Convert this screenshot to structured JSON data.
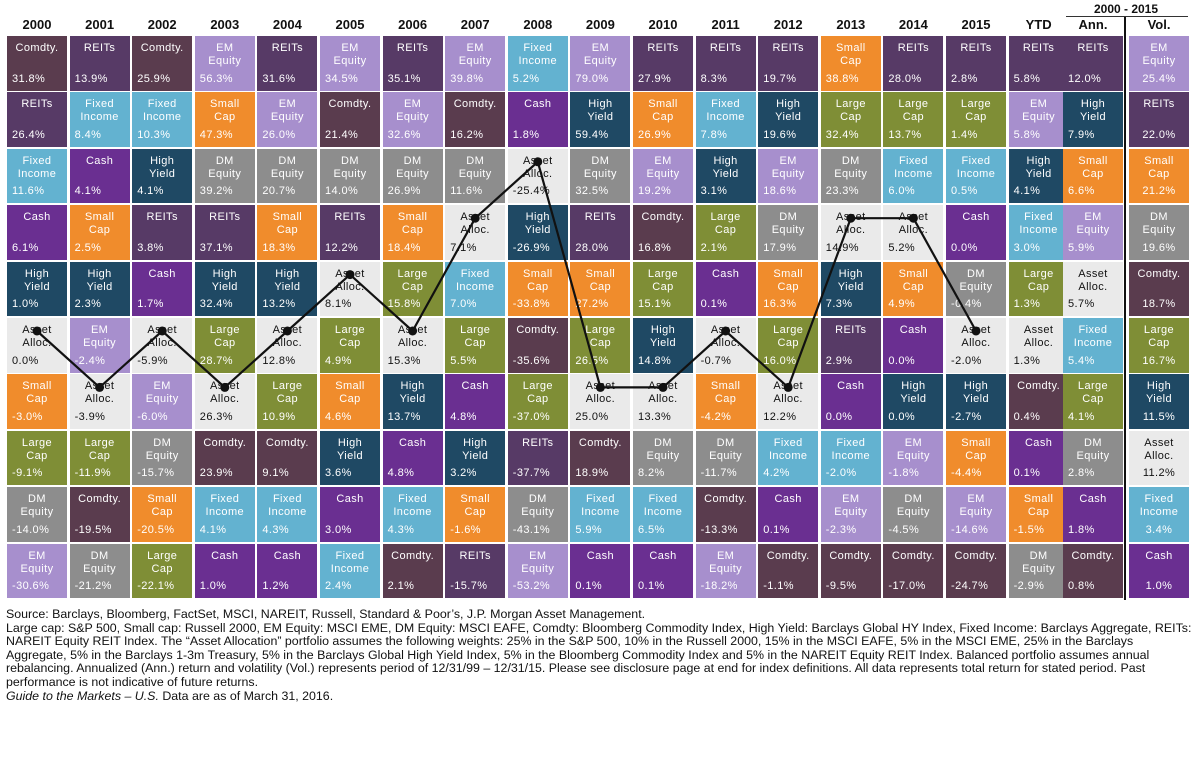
{
  "header": {
    "years": [
      "2000",
      "2001",
      "2002",
      "2003",
      "2004",
      "2005",
      "2006",
      "2007",
      "2008",
      "2009",
      "2010",
      "2011",
      "2012",
      "2013",
      "2014",
      "2015",
      "YTD"
    ],
    "period_label": "2000 - 2015",
    "ann_label": "Ann.",
    "vol_label": "Vol."
  },
  "colors": {
    "Comdty.": "#5a3c4e",
    "REITs": "#573a66",
    "EM Equity": "#a78fcd",
    "Fixed Income": "#63b2d0",
    "Small Cap": "#f08c2c",
    "Cash": "#6a2f91",
    "High Yield": "#1f4964",
    "DM Equity": "#8d8d8d",
    "Large Cap": "#7f8e36",
    "Asset Alloc.": "#eaeaea"
  },
  "display_names": {
    "Comdty.": "Comdty.",
    "REITs": "REITs",
    "EM Equity": "EM\nEquity",
    "Fixed Income": "Fixed\nIncome",
    "Small Cap": "Small\nCap",
    "Cash": "Cash",
    "High Yield": "High\nYield",
    "DM Equity": "DM\nEquity",
    "Large Cap": "Large\nCap",
    "Asset Alloc.": "Asset\nAlloc."
  },
  "chart_data": {
    "type": "table",
    "title": "",
    "columns": [
      "2000",
      "2001",
      "2002",
      "2003",
      "2004",
      "2005",
      "2006",
      "2007",
      "2008",
      "2009",
      "2010",
      "2011",
      "2012",
      "2013",
      "2014",
      "2015",
      "YTD"
    ],
    "ranked_returns": [
      [
        [
          "Comdty.",
          "31.8%"
        ],
        [
          "REITs",
          "26.4%"
        ],
        [
          "Fixed Income",
          "11.6%"
        ],
        [
          "Cash",
          "6.1%"
        ],
        [
          "High Yield",
          "1.0%"
        ],
        [
          "Asset Alloc.",
          "0.0%"
        ],
        [
          "Small Cap",
          "-3.0%"
        ],
        [
          "Large Cap",
          "-9.1%"
        ],
        [
          "DM Equity",
          "-14.0%"
        ],
        [
          "EM Equity",
          "-30.6%"
        ]
      ],
      [
        [
          "REITs",
          "13.9%"
        ],
        [
          "Fixed Income",
          "8.4%"
        ],
        [
          "Cash",
          "4.1%"
        ],
        [
          "Small Cap",
          "2.5%"
        ],
        [
          "High Yield",
          "2.3%"
        ],
        [
          "EM Equity",
          "-2.4%"
        ],
        [
          "Asset Alloc.",
          "-3.9%"
        ],
        [
          "Large Cap",
          "-11.9%"
        ],
        [
          "Comdty.",
          "-19.5%"
        ],
        [
          "DM Equity",
          "-21.2%"
        ]
      ],
      [
        [
          "Comdty.",
          "25.9%"
        ],
        [
          "Fixed Income",
          "10.3%"
        ],
        [
          "High Yield",
          "4.1%"
        ],
        [
          "REITs",
          "3.8%"
        ],
        [
          "Cash",
          "1.7%"
        ],
        [
          "Asset Alloc.",
          "-5.9%"
        ],
        [
          "EM Equity",
          "-6.0%"
        ],
        [
          "DM Equity",
          "-15.7%"
        ],
        [
          "Small Cap",
          "-20.5%"
        ],
        [
          "Large Cap",
          "-22.1%"
        ]
      ],
      [
        [
          "EM Equity",
          "56.3%"
        ],
        [
          "Small Cap",
          "47.3%"
        ],
        [
          "DM Equity",
          "39.2%"
        ],
        [
          "REITs",
          "37.1%"
        ],
        [
          "High Yield",
          "32.4%"
        ],
        [
          "Large Cap",
          "28.7%"
        ],
        [
          "Asset Alloc.",
          "26.3%"
        ],
        [
          "Comdty.",
          "23.9%"
        ],
        [
          "Fixed Income",
          "4.1%"
        ],
        [
          "Cash",
          "1.0%"
        ]
      ],
      [
        [
          "REITs",
          "31.6%"
        ],
        [
          "EM Equity",
          "26.0%"
        ],
        [
          "DM Equity",
          "20.7%"
        ],
        [
          "Small Cap",
          "18.3%"
        ],
        [
          "High Yield",
          "13.2%"
        ],
        [
          "Asset Alloc.",
          "12.8%"
        ],
        [
          "Large Cap",
          "10.9%"
        ],
        [
          "Comdty.",
          "9.1%"
        ],
        [
          "Fixed Income",
          "4.3%"
        ],
        [
          "Cash",
          "1.2%"
        ]
      ],
      [
        [
          "EM Equity",
          "34.5%"
        ],
        [
          "Comdty.",
          "21.4%"
        ],
        [
          "DM Equity",
          "14.0%"
        ],
        [
          "REITs",
          "12.2%"
        ],
        [
          "Asset Alloc.",
          "8.1%"
        ],
        [
          "Large Cap",
          "4.9%"
        ],
        [
          "Small Cap",
          "4.6%"
        ],
        [
          "High Yield",
          "3.6%"
        ],
        [
          "Cash",
          "3.0%"
        ],
        [
          "Fixed Income",
          "2.4%"
        ]
      ],
      [
        [
          "REITs",
          "35.1%"
        ],
        [
          "EM Equity",
          "32.6%"
        ],
        [
          "DM Equity",
          "26.9%"
        ],
        [
          "Small Cap",
          "18.4%"
        ],
        [
          "Large Cap",
          "15.8%"
        ],
        [
          "Asset Alloc.",
          "15.3%"
        ],
        [
          "High Yield",
          "13.7%"
        ],
        [
          "Cash",
          "4.8%"
        ],
        [
          "Fixed Income",
          "4.3%"
        ],
        [
          "Comdty.",
          "2.1%"
        ]
      ],
      [
        [
          "EM Equity",
          "39.8%"
        ],
        [
          "Comdty.",
          "16.2%"
        ],
        [
          "DM Equity",
          "11.6%"
        ],
        [
          "Asset Alloc.",
          "7.1%"
        ],
        [
          "Fixed Income",
          "7.0%"
        ],
        [
          "Large Cap",
          "5.5%"
        ],
        [
          "Cash",
          "4.8%"
        ],
        [
          "High Yield",
          "3.2%"
        ],
        [
          "Small Cap",
          "-1.6%"
        ],
        [
          "REITs",
          "-15.7%"
        ]
      ],
      [
        [
          "Fixed Income",
          "5.2%"
        ],
        [
          "Cash",
          "1.8%"
        ],
        [
          "Asset Alloc.",
          "-25.4%"
        ],
        [
          "High Yield",
          "-26.9%"
        ],
        [
          "Small Cap",
          "-33.8%"
        ],
        [
          "Comdty.",
          "-35.6%"
        ],
        [
          "Large Cap",
          "-37.0%"
        ],
        [
          "REITs",
          "-37.7%"
        ],
        [
          "DM Equity",
          "-43.1%"
        ],
        [
          "EM Equity",
          "-53.2%"
        ]
      ],
      [
        [
          "EM Equity",
          "79.0%"
        ],
        [
          "High Yield",
          "59.4%"
        ],
        [
          "DM Equity",
          "32.5%"
        ],
        [
          "REITs",
          "28.0%"
        ],
        [
          "Small Cap",
          "27.2%"
        ],
        [
          "Large Cap",
          "26.5%"
        ],
        [
          "Asset Alloc.",
          "25.0%"
        ],
        [
          "Comdty.",
          "18.9%"
        ],
        [
          "Fixed Income",
          "5.9%"
        ],
        [
          "Cash",
          "0.1%"
        ]
      ],
      [
        [
          "REITs",
          "27.9%"
        ],
        [
          "Small Cap",
          "26.9%"
        ],
        [
          "EM Equity",
          "19.2%"
        ],
        [
          "Comdty.",
          "16.8%"
        ],
        [
          "Large Cap",
          "15.1%"
        ],
        [
          "High Yield",
          "14.8%"
        ],
        [
          "Asset Alloc.",
          "13.3%"
        ],
        [
          "DM Equity",
          "8.2%"
        ],
        [
          "Fixed Income",
          "6.5%"
        ],
        [
          "Cash",
          "0.1%"
        ]
      ],
      [
        [
          "REITs",
          "8.3%"
        ],
        [
          "Fixed Income",
          "7.8%"
        ],
        [
          "High Yield",
          "3.1%"
        ],
        [
          "Large Cap",
          "2.1%"
        ],
        [
          "Cash",
          "0.1%"
        ],
        [
          "Asset Alloc.",
          "-0.7%"
        ],
        [
          "Small Cap",
          "-4.2%"
        ],
        [
          "DM Equity",
          "-11.7%"
        ],
        [
          "Comdty.",
          "-13.3%"
        ],
        [
          "EM Equity",
          "-18.2%"
        ]
      ],
      [
        [
          "REITs",
          "19.7%"
        ],
        [
          "High Yield",
          "19.6%"
        ],
        [
          "EM Equity",
          "18.6%"
        ],
        [
          "DM Equity",
          "17.9%"
        ],
        [
          "Small Cap",
          "16.3%"
        ],
        [
          "Large Cap",
          "16.0%"
        ],
        [
          "Asset Alloc.",
          "12.2%"
        ],
        [
          "Fixed Income",
          "4.2%"
        ],
        [
          "Cash",
          "0.1%"
        ],
        [
          "Comdty.",
          "-1.1%"
        ]
      ],
      [
        [
          "Small Cap",
          "38.8%"
        ],
        [
          "Large Cap",
          "32.4%"
        ],
        [
          "DM Equity",
          "23.3%"
        ],
        [
          "Asset Alloc.",
          "14.9%"
        ],
        [
          "High Yield",
          "7.3%"
        ],
        [
          "REITs",
          "2.9%"
        ],
        [
          "Cash",
          "0.0%"
        ],
        [
          "Fixed Income",
          "-2.0%"
        ],
        [
          "EM Equity",
          "-2.3%"
        ],
        [
          "Comdty.",
          "-9.5%"
        ]
      ],
      [
        [
          "REITs",
          "28.0%"
        ],
        [
          "Large Cap",
          "13.7%"
        ],
        [
          "Fixed Income",
          "6.0%"
        ],
        [
          "Asset Alloc.",
          "5.2%"
        ],
        [
          "Small Cap",
          "4.9%"
        ],
        [
          "Cash",
          "0.0%"
        ],
        [
          "High Yield",
          "0.0%"
        ],
        [
          "EM Equity",
          "-1.8%"
        ],
        [
          "DM Equity",
          "-4.5%"
        ],
        [
          "Comdty.",
          "-17.0%"
        ]
      ],
      [
        [
          "REITs",
          "2.8%"
        ],
        [
          "Large Cap",
          "1.4%"
        ],
        [
          "Fixed Income",
          "0.5%"
        ],
        [
          "Cash",
          "0.0%"
        ],
        [
          "DM Equity",
          "-0.4%"
        ],
        [
          "Asset Alloc.",
          "-2.0%"
        ],
        [
          "High Yield",
          "-2.7%"
        ],
        [
          "Small Cap",
          "-4.4%"
        ],
        [
          "EM Equity",
          "-14.6%"
        ],
        [
          "Comdty.",
          "-24.7%"
        ]
      ],
      [
        [
          "REITs",
          "5.8%"
        ],
        [
          "EM Equity",
          "5.8%"
        ],
        [
          "High Yield",
          "4.1%"
        ],
        [
          "Fixed Income",
          "3.0%"
        ],
        [
          "Large Cap",
          "1.3%"
        ],
        [
          "Asset Alloc.",
          "1.3%"
        ],
        [
          "Comdty.",
          "0.4%"
        ],
        [
          "Cash",
          "0.1%"
        ],
        [
          "Small Cap",
          "-1.5%"
        ],
        [
          "DM Equity",
          "-2.9%"
        ]
      ]
    ],
    "annualized_2000_2015": [
      [
        "REITs",
        "12.0%"
      ],
      [
        "High Yield",
        "7.9%"
      ],
      [
        "Small Cap",
        "6.6%"
      ],
      [
        "EM Equity",
        "5.9%"
      ],
      [
        "Asset Alloc.",
        "5.7%"
      ],
      [
        "Fixed Income",
        "5.4%"
      ],
      [
        "Large Cap",
        "4.1%"
      ],
      [
        "DM Equity",
        "2.8%"
      ],
      [
        "Cash",
        "1.8%"
      ],
      [
        "Comdty.",
        "0.8%"
      ]
    ],
    "volatility_2000_2015": [
      [
        "EM Equity",
        "25.4%"
      ],
      [
        "REITs",
        "22.0%"
      ],
      [
        "Small Cap",
        "21.2%"
      ],
      [
        "DM Equity",
        "19.6%"
      ],
      [
        "Comdty.",
        "18.7%"
      ],
      [
        "Large Cap",
        "16.7%"
      ],
      [
        "High Yield",
        "11.5%"
      ],
      [
        "Asset Alloc.",
        "11.2%"
      ],
      [
        "Fixed Income",
        "3.4%"
      ],
      [
        "Cash",
        "1.0%"
      ]
    ],
    "asset_allocation_line": "Asset Alloc."
  },
  "notes": {
    "source": "Source: Barclays, Bloomberg, FactSet, MSCI, NAREIT, Russell, Standard & Poor’s, J.P. Morgan Asset Management.",
    "body": "Large cap: S&P 500, Small cap: Russell 2000, EM Equity: MSCI EME, DM Equity: MSCI EAFE, Comdty: Bloomberg Commodity Index, High Yield: Barclays Global HY Index, Fixed Income: Barclays Aggregate, REITs: NAREIT Equity REIT Index. The “Asset Allocation” portfolio assumes the following weights: 25% in the S&P 500, 10% in the Russell 2000, 15% in the MSCI EAFE, 5% in the MSCI EME, 25% in the Barclays Aggregate, 5% in the Barclays 1-3m Treasury, 5% in the Barclays Global High Yield Index, 5% in the Bloomberg Commodity Index and 5% in the NAREIT Equity REIT Index. Balanced portfolio assumes annual rebalancing. Annualized (Ann.) return and volatility (Vol.) represents period of 12/31/99 – 12/31/15. Please see disclosure page at end for index definitions. All data represents total return for stated period. Past performance is not indicative of future returns.",
    "guide": "Guide to the Markets – U.S.",
    "as_of": " Data are as of March 31, 2016."
  }
}
